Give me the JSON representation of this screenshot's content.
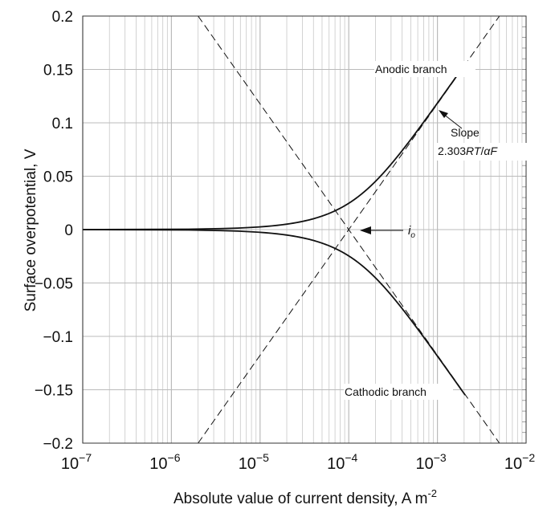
{
  "chart_data": {
    "type": "line",
    "xscale": "log",
    "xlim": [
      1e-07,
      0.01
    ],
    "ylim": [
      -0.2,
      0.2
    ],
    "xlabel": "Absolute value of current density, A m",
    "xlabel_sup": "-2",
    "ylabel": "Surface overpotential, V",
    "x_ticks": [
      {
        "base": "10",
        "exp": "−7"
      },
      {
        "base": "10",
        "exp": "−6"
      },
      {
        "base": "10",
        "exp": "−5"
      },
      {
        "base": "10",
        "exp": "−4"
      },
      {
        "base": "10",
        "exp": "−3"
      },
      {
        "base": "10",
        "exp": "−2"
      }
    ],
    "y_ticks": [
      "0.2",
      "0.15",
      "0.1",
      "0.05",
      "0",
      "−0.05",
      "−0.1",
      "−0.15",
      "−0.2"
    ],
    "y_tick_values": [
      0.2,
      0.15,
      0.1,
      0.05,
      0,
      -0.05,
      -0.1,
      -0.15,
      -0.2
    ],
    "grid": true,
    "exchange_current_density": 0.0001,
    "tafel_slope_V_per_decade": 0.118,
    "series": [
      {
        "name": "Anodic branch",
        "style": "solid",
        "eta_range": [
          0,
          0.155
        ]
      },
      {
        "name": "Cathodic branch",
        "style": "solid",
        "eta_range": [
          -0.155,
          0
        ]
      },
      {
        "name": "Anodic Tafel line",
        "style": "dashed",
        "points": [
          [
            2e-06,
            -0.2
          ],
          [
            0.005,
            0.2
          ]
        ]
      },
      {
        "name": "Cathodic Tafel line",
        "style": "dashed",
        "points": [
          [
            2e-06,
            0.2
          ],
          [
            0.005,
            -0.2
          ]
        ]
      }
    ],
    "annotations": {
      "anodic": "Anodic branch",
      "cathodic": "Cathodic branch",
      "slope_title": "Slope",
      "slope_formula_num": "2.303",
      "slope_formula_italic1": "RT",
      "slope_formula_sep": "/",
      "slope_formula_italic2": "αF",
      "io_main": "i",
      "io_sub": "o"
    }
  }
}
